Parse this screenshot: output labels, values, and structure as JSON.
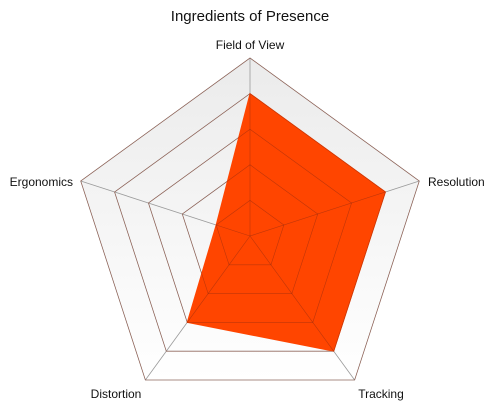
{
  "chart_data": {
    "type": "radar",
    "title": "Ingredients of Presence",
    "axes": [
      "Field of View",
      "Resolution",
      "Tracking",
      "Distortion",
      "Ergonomics"
    ],
    "range": [
      0,
      5
    ],
    "rings": 5,
    "grid": true,
    "series": [
      {
        "values": [
          4.0,
          4.0,
          4.0,
          3.0,
          1.0
        ],
        "color": "#ff4500"
      }
    ]
  },
  "colors": {
    "grid_line": "#9a9a9a",
    "grid_background_top": "#ebebeb",
    "grid_background_bottom": "#ffffff",
    "series_fill": "#ff4500",
    "series_stroke": "#ff4500",
    "text": "#111111"
  }
}
